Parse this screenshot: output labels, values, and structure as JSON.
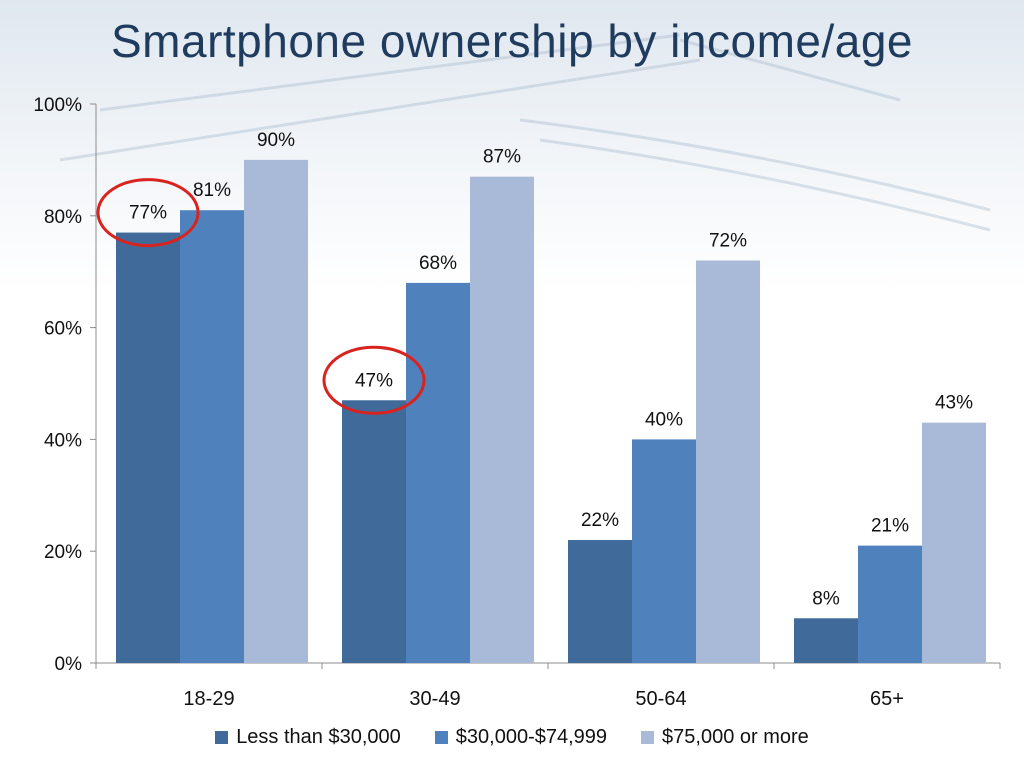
{
  "title": "Smartphone ownership by income/age",
  "chart_data": {
    "type": "bar",
    "categories": [
      "18-29",
      "30-49",
      "50-64",
      "65+"
    ],
    "series": [
      {
        "name": "Less than $30,000",
        "values": [
          77,
          47,
          22,
          8
        ],
        "color": "#3f6a9a"
      },
      {
        "name": "$30,000-$74,999",
        "values": [
          81,
          68,
          40,
          21
        ],
        "color": "#4f81bd"
      },
      {
        "name": "$75,000 or more",
        "values": [
          90,
          87,
          72,
          43
        ],
        "color": "#a9bad8"
      }
    ],
    "y_ticks": [
      "0%",
      "20%",
      "40%",
      "60%",
      "80%",
      "100%"
    ],
    "ylim": [
      0,
      100
    ],
    "value_suffix": "%",
    "legend_position": "bottom",
    "highlighted": [
      {
        "series": 0,
        "category": 0
      },
      {
        "series": 0,
        "category": 1
      }
    ],
    "highlight_color": "#d9231f"
  }
}
